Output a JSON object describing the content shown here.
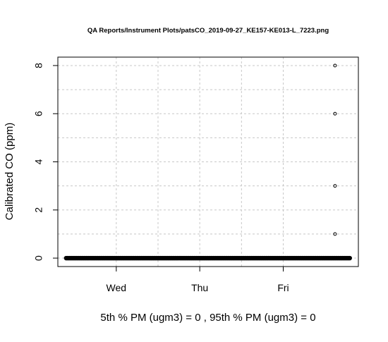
{
  "chart_data": {
    "type": "scatter",
    "title": "QA Reports/Instrument Plots/patsCO_2019-09-27_KE157-KE013-L_7223.png",
    "xlabel": "5th % PM (ugm3) =  0 , 95th % PM (ugm3)  =  0",
    "ylabel": "Calibrated CO (ppm)",
    "x_unit": "days",
    "xlim": [
      0,
      3.6
    ],
    "ylim": [
      -0.35,
      8.35
    ],
    "x_ticks": [
      {
        "label": "Wed",
        "value": 0.7
      },
      {
        "label": "Thu",
        "value": 1.7
      },
      {
        "label": "Fri",
        "value": 2.7
      }
    ],
    "y_ticks": [
      {
        "label": "0",
        "value": 0
      },
      {
        "label": "2",
        "value": 2
      },
      {
        "label": "4",
        "value": 4
      },
      {
        "label": "6",
        "value": 6
      },
      {
        "label": "8",
        "value": 8
      }
    ],
    "grid": true,
    "grid_style": "dotted",
    "baseline_series": {
      "x_start": 0.1,
      "x_end": 3.5,
      "y": 0
    },
    "outliers": [
      {
        "x": 3.32,
        "y": 8
      },
      {
        "x": 3.32,
        "y": 6
      },
      {
        "x": 3.32,
        "y": 3
      },
      {
        "x": 3.32,
        "y": 1
      }
    ],
    "point_color": "#000000",
    "grid_color": "#c8c8c8"
  }
}
